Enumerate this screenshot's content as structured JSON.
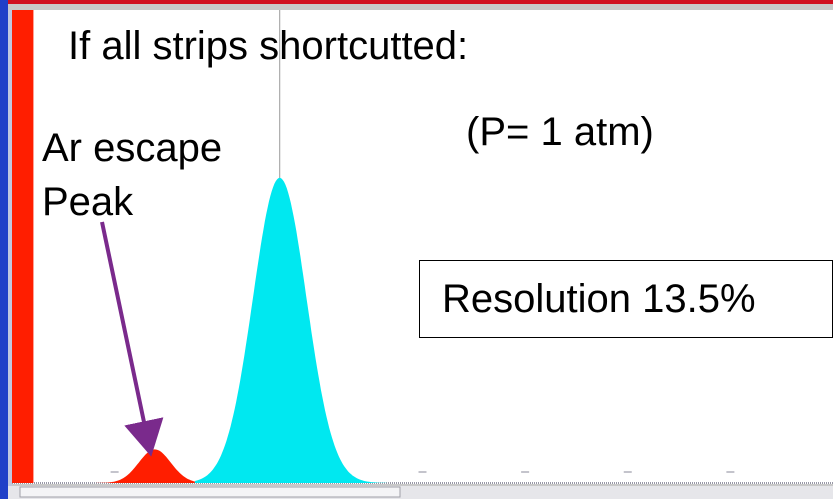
{
  "slide": {
    "heading": "If all strips shortcutted:",
    "condition": "(P= 1 atm)",
    "escape_label_line1": "Ar escape",
    "escape_label_line2": "Peak",
    "resolution": "Resolution 13.5%"
  },
  "colors": {
    "background_top": "#c8c8c8",
    "plot_background": "#ffffff",
    "frame_border": "#b0b8c8",
    "top_strip": "#d01020",
    "left_axis": "#2040c8",
    "escape_peak_fill": "#ff1e00",
    "main_peak_fill": "#00e8f0",
    "arrow": "#7a2a8c"
  },
  "chart_data": {
    "type": "area",
    "title": "",
    "xlabel": "",
    "ylabel": "",
    "xlim": [
      0,
      920
    ],
    "ylim": [
      0,
      1550
    ],
    "grid": false,
    "x_ticks": [
      "",
      "",
      "",
      "",
      "",
      "",
      ""
    ],
    "y_ticks": [
      "",
      "",
      "",
      "",
      ""
    ],
    "vertical_marker_x": 300,
    "series": [
      {
        "fill": "escape_peak_fill",
        "shape": "gaussian",
        "center": 160,
        "sigma": 18,
        "amplitude": 110,
        "range": [
          0,
          205
        ]
      },
      {
        "fill": "main_peak_fill",
        "shape": "gaussian",
        "center": 300,
        "sigma": 30,
        "amplitude": 1000,
        "range": [
          205,
          420
        ]
      }
    ],
    "low_edge": {
      "x_max": 24,
      "y_top": 1550
    },
    "annotation": {
      "target_x": 160,
      "target_y": 125
    }
  }
}
